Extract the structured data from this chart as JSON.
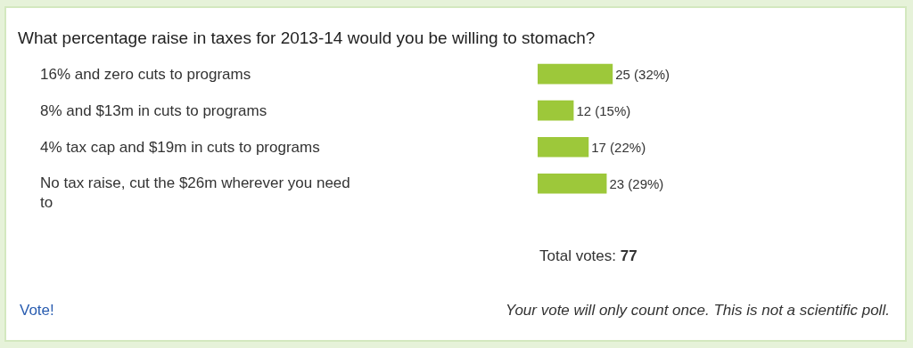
{
  "chart_data": {
    "type": "bar",
    "orientation": "horizontal",
    "title": "What percentage raise in taxes for 2013-14 would you be willing to stomach?",
    "categories": [
      "16% and zero cuts to programs",
      "8% and $13m in cuts to programs",
      "4% tax cap and $19m in cuts to programs",
      "No tax raise, cut the $26m wherever you need to"
    ],
    "values": [
      25,
      12,
      17,
      23
    ],
    "value_labels": [
      "25 (32%)",
      "12 (15%)",
      "17 (22%)",
      "23 (29%)"
    ],
    "color": "#9dc83a",
    "annotations": [
      "Total votes: 77",
      "Vote!",
      "Your vote will only count once. This is not a scientific poll."
    ]
  }
}
